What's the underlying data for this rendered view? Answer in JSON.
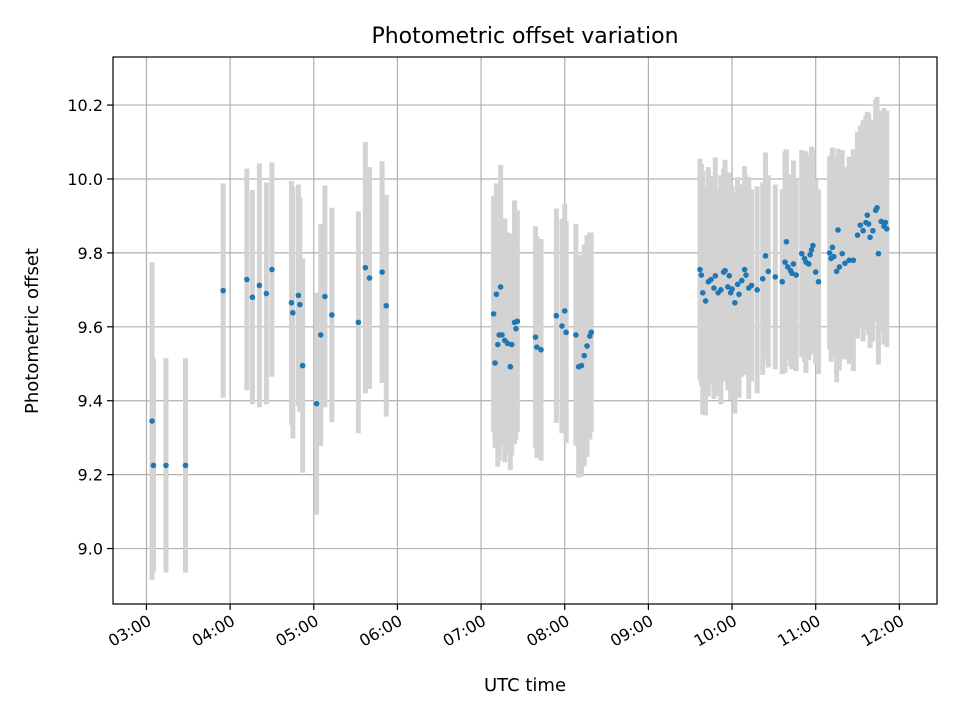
{
  "chart_data": {
    "type": "scatter",
    "title": "Photometric offset variation",
    "xlabel": "UTC time",
    "ylabel": "Photometric offset",
    "x_tick_labels": [
      "03:00",
      "04:00",
      "05:00",
      "06:00",
      "07:00",
      "08:00",
      "09:00",
      "10:00",
      "11:00",
      "12:00"
    ],
    "y_ticks": [
      9.0,
      9.2,
      9.4,
      9.6,
      9.8,
      10.0,
      10.2
    ],
    "y_tick_labels": [
      "9.0",
      "9.2",
      "9.4",
      "9.6",
      "9.8",
      "10.0",
      "10.2"
    ],
    "xlim": [
      "02:36",
      "12:27"
    ],
    "ylim": [
      8.85,
      10.33
    ],
    "grid": true,
    "marker_color": "#1f77b4",
    "errorbar_color": "#d3d3d3",
    "points": [
      [
        "03:04",
        9.345,
        0.43
      ],
      [
        "03:05",
        9.225,
        0.29
      ],
      [
        "03:14",
        9.225,
        0.29
      ],
      [
        "03:28",
        9.225,
        0.29
      ],
      [
        "03:55",
        9.698,
        0.29
      ],
      [
        "04:12",
        9.728,
        0.3
      ],
      [
        "04:16",
        9.68,
        0.29
      ],
      [
        "04:21",
        9.712,
        0.33
      ],
      [
        "04:26",
        9.69,
        0.3
      ],
      [
        "04:30",
        9.755,
        0.29
      ],
      [
        "04:44",
        9.665,
        0.33
      ],
      [
        "04:45",
        9.638,
        0.34
      ],
      [
        "04:49",
        9.685,
        0.3
      ],
      [
        "04:50",
        9.66,
        0.29
      ],
      [
        "04:52",
        9.495,
        0.29
      ],
      [
        "05:02",
        9.392,
        0.3
      ],
      [
        "05:05",
        9.578,
        0.3
      ],
      [
        "05:08",
        9.682,
        0.3
      ],
      [
        "05:13",
        9.632,
        0.29
      ],
      [
        "05:32",
        9.612,
        0.3
      ],
      [
        "05:37",
        9.76,
        0.34
      ],
      [
        "05:40",
        9.732,
        0.3
      ],
      [
        "05:49",
        9.748,
        0.3
      ],
      [
        "05:52",
        9.657,
        0.3
      ],
      [
        "07:09",
        9.635,
        0.32
      ],
      [
        "07:10",
        9.502,
        0.23
      ],
      [
        "07:11",
        9.688,
        0.3
      ],
      [
        "07:12",
        9.552,
        0.33
      ],
      [
        "07:13",
        9.578,
        0.34
      ],
      [
        "07:14",
        9.708,
        0.33
      ],
      [
        "07:15",
        9.578,
        0.3
      ],
      [
        "07:17",
        9.563,
        0.33
      ],
      [
        "07:19",
        9.555,
        0.3
      ],
      [
        "07:21",
        9.492,
        0.28
      ],
      [
        "07:22",
        9.552,
        0.3
      ],
      [
        "07:24",
        9.612,
        0.33
      ],
      [
        "07:25",
        9.595,
        0.3
      ],
      [
        "07:26",
        9.615,
        0.3
      ],
      [
        "07:39",
        9.572,
        0.3
      ],
      [
        "07:40",
        9.545,
        0.3
      ],
      [
        "07:43",
        9.538,
        0.3
      ],
      [
        "07:54",
        9.63,
        0.29
      ],
      [
        "07:58",
        9.602,
        0.29
      ],
      [
        "08:00",
        9.643,
        0.29
      ],
      [
        "08:01",
        9.585,
        0.3
      ],
      [
        "08:08",
        9.578,
        0.3
      ],
      [
        "08:10",
        9.492,
        0.3
      ],
      [
        "08:12",
        9.495,
        0.3
      ],
      [
        "08:14",
        9.522,
        0.3
      ],
      [
        "08:16",
        9.548,
        0.3
      ],
      [
        "08:18",
        9.575,
        0.28
      ],
      [
        "08:19",
        9.585,
        0.27
      ],
      [
        "09:37",
        9.755,
        0.3
      ],
      [
        "09:38",
        9.74,
        0.3
      ],
      [
        "09:39",
        9.692,
        0.33
      ],
      [
        "09:41",
        9.67,
        0.31
      ],
      [
        "09:43",
        9.722,
        0.31
      ],
      [
        "09:45",
        9.728,
        0.28
      ],
      [
        "09:47",
        9.705,
        0.3
      ],
      [
        "09:48",
        9.738,
        0.32
      ],
      [
        "09:50",
        9.692,
        0.28
      ],
      [
        "09:52",
        9.7,
        0.31
      ],
      [
        "09:54",
        9.748,
        0.28
      ],
      [
        "09:55",
        9.752,
        0.3
      ],
      [
        "09:57",
        9.708,
        0.28
      ],
      [
        "09:58",
        9.738,
        0.28
      ],
      [
        "09:59",
        9.692,
        0.29
      ],
      [
        "10:00",
        9.702,
        0.28
      ],
      [
        "10:02",
        9.665,
        0.3
      ],
      [
        "10:04",
        9.715,
        0.29
      ],
      [
        "10:05",
        9.688,
        0.28
      ],
      [
        "10:07",
        9.725,
        0.26
      ],
      [
        "10:09",
        9.755,
        0.28
      ],
      [
        "10:10",
        9.74,
        0.27
      ],
      [
        "10:12",
        9.705,
        0.3
      ],
      [
        "10:14",
        9.712,
        0.26
      ],
      [
        "10:18",
        9.7,
        0.28
      ],
      [
        "10:22",
        9.73,
        0.26
      ],
      [
        "10:24",
        9.792,
        0.28
      ],
      [
        "10:26",
        9.75,
        0.26
      ],
      [
        "10:31",
        9.735,
        0.25
      ],
      [
        "10:36",
        9.722,
        0.25
      ],
      [
        "10:38",
        9.775,
        0.3
      ],
      [
        "10:39",
        9.83,
        0.25
      ],
      [
        "10:40",
        9.762,
        0.25
      ],
      [
        "10:42",
        9.752,
        0.26
      ],
      [
        "10:43",
        9.745,
        0.26
      ],
      [
        "10:44",
        9.77,
        0.28
      ],
      [
        "10:46",
        9.74,
        0.26
      ],
      [
        "10:50",
        9.798,
        0.28
      ],
      [
        "10:52",
        9.785,
        0.28
      ],
      [
        "10:53",
        9.775,
        0.3
      ],
      [
        "10:55",
        9.77,
        0.26
      ],
      [
        "10:56",
        9.795,
        0.27
      ],
      [
        "10:57",
        9.808,
        0.28
      ],
      [
        "10:58",
        9.82,
        0.26
      ],
      [
        "11:00",
        9.748,
        0.25
      ],
      [
        "11:02",
        9.722,
        0.25
      ],
      [
        "11:10",
        9.8,
        0.26
      ],
      [
        "11:11",
        9.785,
        0.28
      ],
      [
        "11:12",
        9.815,
        0.27
      ],
      [
        "11:13",
        9.79,
        0.27
      ],
      [
        "11:15",
        9.75,
        0.3
      ],
      [
        "11:16",
        9.862,
        0.22
      ],
      [
        "11:17",
        9.762,
        0.28
      ],
      [
        "11:19",
        9.798,
        0.28
      ],
      [
        "11:21",
        9.772,
        0.26
      ],
      [
        "11:24",
        9.78,
        0.28
      ],
      [
        "11:27",
        9.78,
        0.3
      ],
      [
        "11:30",
        9.848,
        0.28
      ],
      [
        "11:32",
        9.875,
        0.27
      ],
      [
        "11:34",
        9.86,
        0.3
      ],
      [
        "11:36",
        9.882,
        0.29
      ],
      [
        "11:37",
        9.902,
        0.28
      ],
      [
        "11:38",
        9.878,
        0.3
      ],
      [
        "11:39",
        9.842,
        0.3
      ],
      [
        "11:41",
        9.86,
        0.3
      ],
      [
        "11:43",
        9.915,
        0.3
      ],
      [
        "11:44",
        9.922,
        0.3
      ],
      [
        "11:45",
        9.798,
        0.3
      ],
      [
        "11:47",
        9.885,
        0.3
      ],
      [
        "11:49",
        9.872,
        0.32
      ],
      [
        "11:50",
        9.882,
        0.3
      ],
      [
        "11:51",
        9.865,
        0.32
      ]
    ]
  }
}
